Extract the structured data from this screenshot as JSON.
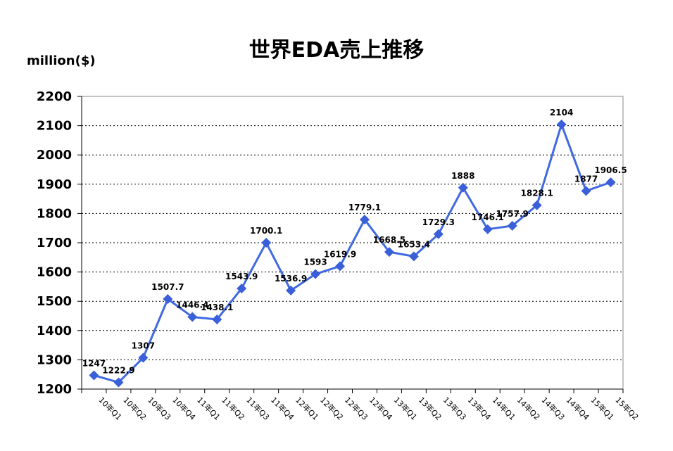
{
  "chart_data": {
    "type": "line",
    "title": "世界EDA売上推移",
    "ylabel": "million($)",
    "xlabel": "",
    "ylim": [
      1200,
      2200
    ],
    "yticks": [
      1200,
      1300,
      1400,
      1500,
      1600,
      1700,
      1800,
      1900,
      2000,
      2100,
      2200
    ],
    "grid": "horizontal-dotted",
    "categories": [
      "10年Q1",
      "10年Q2",
      "10年Q3",
      "10年Q4",
      "11年Q1",
      "11年Q2",
      "11年Q3",
      "11年Q4",
      "12年Q1",
      "12年Q2",
      "12年Q3",
      "12年Q4",
      "13年Q1",
      "13年Q2",
      "13年Q3",
      "13年Q4",
      "14年Q1",
      "14年Q2",
      "14年Q3",
      "14年Q4",
      "15年Q1",
      "15年Q2"
    ],
    "values": [
      1247,
      1222.9,
      1307,
      1507.7,
      1446.4,
      1438.1,
      1543.9,
      1700.1,
      1536.9,
      1593,
      1619.9,
      1779.1,
      1668.5,
      1653.4,
      1729.3,
      1888,
      1746.1,
      1757.9,
      1828.1,
      2104,
      1877,
      1906.5
    ],
    "data_labels": [
      "1247",
      "1222.9",
      "1307",
      "1507.7",
      "1446.4",
      "1438.1",
      "1543.9",
      "1700.1",
      "1536.9",
      "1593",
      "1619.9",
      "1779.1",
      "1668.5",
      "1653.4",
      "1729.3",
      "1888",
      "1746.1",
      "1757.9",
      "1828.1",
      "2104",
      "1877",
      "1906.5"
    ],
    "colors": {
      "line": "#4169E1",
      "marker": "#3A5FD9",
      "grid": "#000000"
    }
  }
}
